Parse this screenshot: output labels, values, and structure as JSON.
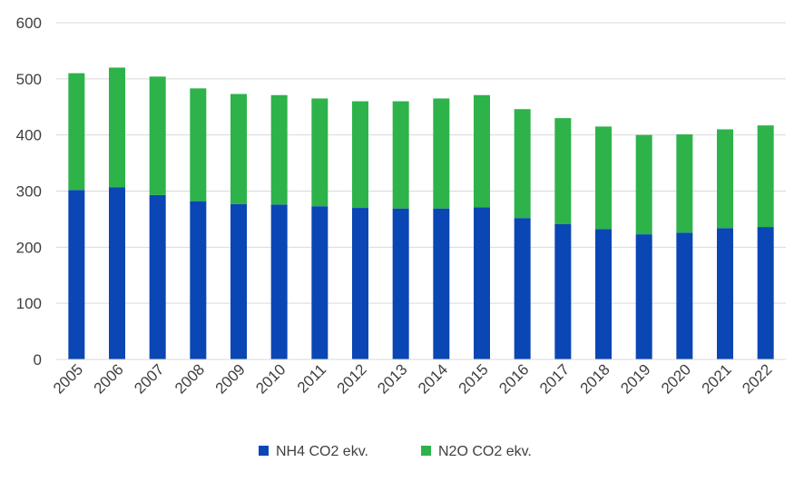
{
  "chart_data": {
    "type": "bar",
    "stacked": true,
    "categories": [
      "2005",
      "2006",
      "2007",
      "2008",
      "2009",
      "2010",
      "2011",
      "2012",
      "2013",
      "2014",
      "2015",
      "2016",
      "2017",
      "2018",
      "2019",
      "2020",
      "2021",
      "2022"
    ],
    "series": [
      {
        "name": "NH4 CO2 ekv.",
        "color": "#0a46b4",
        "values": [
          302,
          307,
          293,
          282,
          277,
          276,
          273,
          270,
          269,
          269,
          271,
          252,
          241,
          232,
          223,
          226,
          234,
          236
        ]
      },
      {
        "name": "N2O CO2 ekv.",
        "color": "#2db34a",
        "values": [
          208,
          213,
          211,
          201,
          196,
          195,
          192,
          190,
          191,
          196,
          200,
          194,
          189,
          183,
          177,
          175,
          176,
          181
        ]
      }
    ],
    "ylim": [
      0,
      600
    ],
    "yticks": [
      0,
      100,
      200,
      300,
      400,
      500,
      600
    ],
    "grid": true,
    "legend_position": "bottom"
  }
}
